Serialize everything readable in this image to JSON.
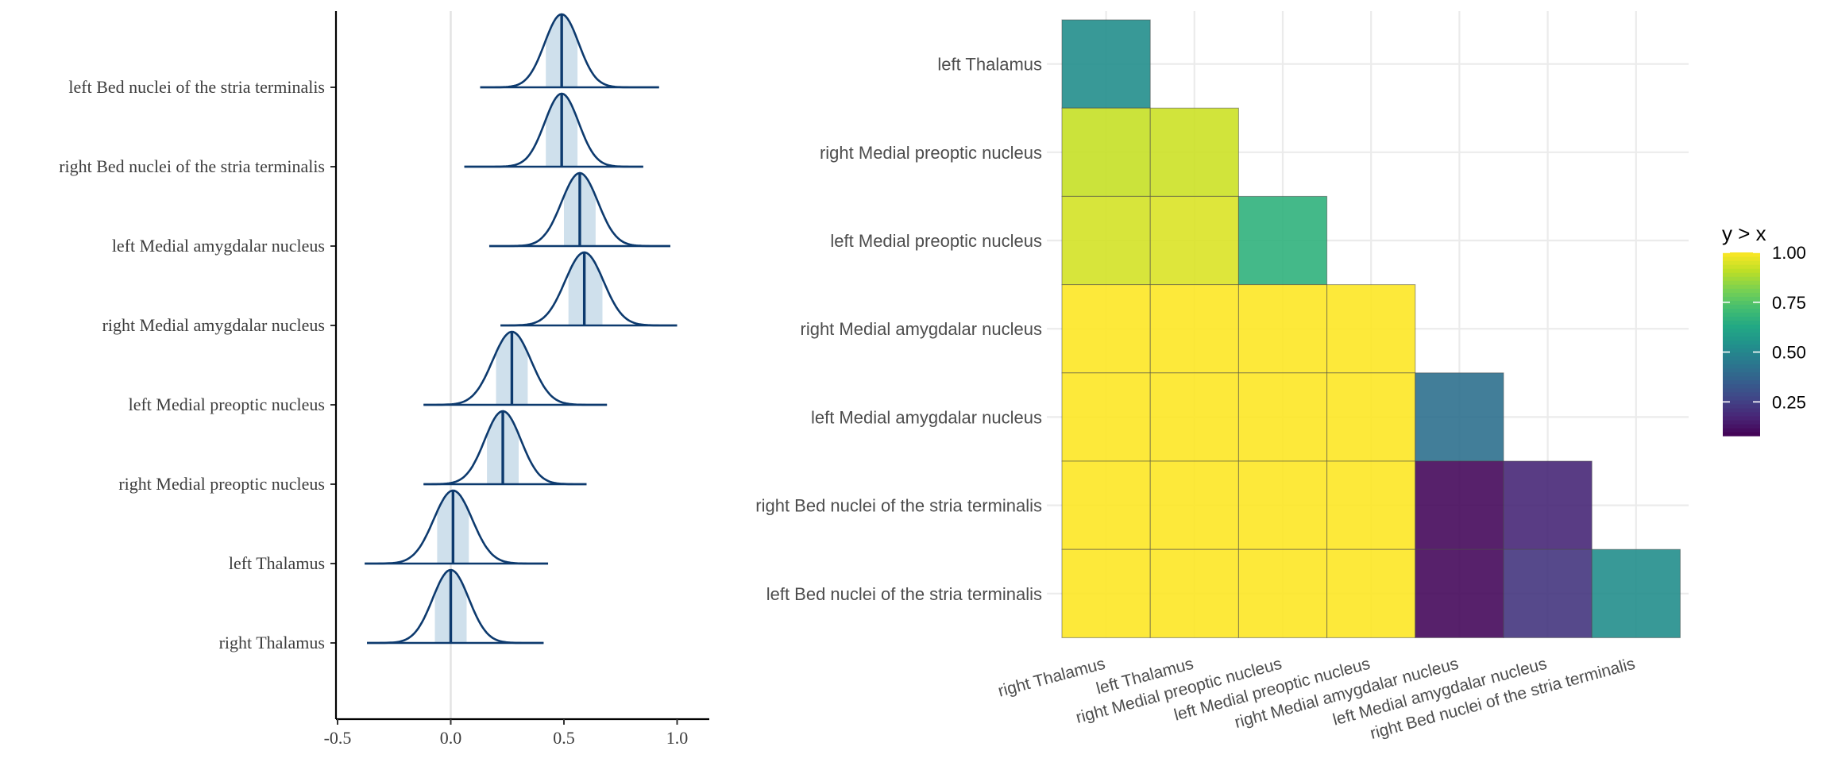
{
  "chart_data": [
    {
      "type": "ridgeline",
      "title": "",
      "xlabel": "",
      "ylabel": "",
      "xlim": [
        -0.52,
        1.13
      ],
      "xticks": [
        -0.5,
        0.0,
        0.5,
        1.0
      ],
      "xtick_labels": [
        "-0.5",
        "0.0",
        "0.5",
        "1.0"
      ],
      "grid": "vertical zero line",
      "series": [
        {
          "name": "left Bed nuclei of the stria terminalis",
          "median": 0.49,
          "interval": [
            0.42,
            0.56
          ],
          "sd": 0.075,
          "range": [
            0.13,
            0.92
          ]
        },
        {
          "name": "right Bed nuclei of the stria terminalis",
          "median": 0.49,
          "interval": [
            0.42,
            0.56
          ],
          "sd": 0.075,
          "range": [
            0.06,
            0.85
          ]
        },
        {
          "name": "left Medial amygdalar nucleus",
          "median": 0.57,
          "interval": [
            0.5,
            0.64
          ],
          "sd": 0.08,
          "range": [
            0.17,
            0.97
          ]
        },
        {
          "name": "right Medial amygdalar nucleus",
          "median": 0.59,
          "interval": [
            0.52,
            0.67
          ],
          "sd": 0.085,
          "range": [
            0.22,
            1.0
          ]
        },
        {
          "name": "left Medial preoptic nucleus",
          "median": 0.27,
          "interval": [
            0.2,
            0.34
          ],
          "sd": 0.085,
          "range": [
            -0.12,
            0.69
          ]
        },
        {
          "name": "right Medial preoptic nucleus",
          "median": 0.23,
          "interval": [
            0.16,
            0.3
          ],
          "sd": 0.08,
          "range": [
            -0.12,
            0.6
          ]
        },
        {
          "name": "left Thalamus",
          "median": 0.01,
          "interval": [
            -0.06,
            0.08
          ],
          "sd": 0.085,
          "range": [
            -0.38,
            0.43
          ]
        },
        {
          "name": "right Thalamus",
          "median": 0.0,
          "interval": [
            -0.07,
            0.07
          ],
          "sd": 0.08,
          "range": [
            -0.37,
            0.41
          ]
        }
      ]
    },
    {
      "type": "heatmap",
      "title": "",
      "legend_title": "y > x",
      "legend_ticks": [
        "1.00",
        "0.75",
        "0.50",
        "0.25"
      ],
      "legend_tick_values": [
        1.0,
        0.75,
        0.5,
        0.25
      ],
      "legend_range": [
        0.08,
        1.0
      ],
      "x_categories": [
        "right Thalamus",
        "left Thalamus",
        "right Medial preoptic nucleus",
        "left Medial preoptic nucleus",
        "right Medial amygdalar nucleus",
        "left Medial amygdalar nucleus",
        "right Bed nuclei of the stria terminalis"
      ],
      "y_categories": [
        "left Thalamus",
        "right Medial preoptic nucleus",
        "left Medial preoptic nucleus",
        "right Medial amygdalar nucleus",
        "left Medial amygdalar nucleus",
        "right Bed nuclei of the stria terminalis",
        "left Bed nuclei of the stria terminalis"
      ],
      "values": [
        [
          0.53
        ],
        [
          0.92,
          0.93
        ],
        [
          0.94,
          0.95,
          0.67
        ],
        [
          1.0,
          1.0,
          1.0,
          1.0
        ],
        [
          1.0,
          1.0,
          1.0,
          1.0,
          0.42
        ],
        [
          1.0,
          1.0,
          1.0,
          1.0,
          0.1,
          0.18
        ],
        [
          1.0,
          1.0,
          1.0,
          1.0,
          0.1,
          0.22,
          0.53
        ]
      ]
    }
  ]
}
